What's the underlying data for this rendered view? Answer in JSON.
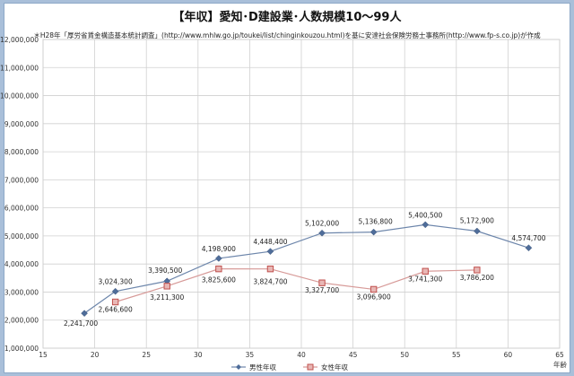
{
  "chart_data": {
    "type": "line",
    "title": "【年収】愛知･D建設業･人数規模10～99人",
    "subtitle": "＊H28年「厚労省賃金構造基本統計調査」(http://www.mhlw.go.jp/toukei/list/chinginkouzou.html)を基に安達社会保険労務士事務所(http://www.fp-s.co.jp)が作成",
    "xlabel": "年齢",
    "ylabel": "",
    "xlim": [
      15,
      65
    ],
    "ylim": [
      1000000,
      12000000
    ],
    "x_ticks": [
      15,
      20,
      25,
      30,
      35,
      40,
      45,
      50,
      55,
      60,
      65
    ],
    "y_ticks": [
      1000000,
      2000000,
      3000000,
      4000000,
      5000000,
      6000000,
      7000000,
      8000000,
      9000000,
      10000000,
      11000000,
      12000000
    ],
    "y_tick_labels": [
      "1,000,000",
      "2,000,000",
      "3,000,000",
      "4,000,000",
      "5,000,000",
      "6,000,000",
      "7,000,000",
      "8,000,000",
      "9,000,000",
      "10,000,000",
      "11,000,000",
      "12,000,000"
    ],
    "grid": true,
    "legend_position": "bottom",
    "series": [
      {
        "name": "男性年収",
        "color": "#4f6d9a",
        "marker": "diamond",
        "x": [
          19,
          22,
          27,
          32,
          37,
          42,
          47,
          52,
          57,
          62
        ],
        "values": [
          2241700,
          3024300,
          3390500,
          4198900,
          4448400,
          5102000,
          5136800,
          5400500,
          5172900,
          4574700
        ],
        "labels": [
          "2,241,700",
          "3,024,300",
          "3,390,500",
          "4,198,900",
          "4,448,400",
          "5,102,000",
          "5,136,800",
          "5,400,500",
          "5,172,900",
          "4,574,700"
        ]
      },
      {
        "name": "女性年収",
        "color": "#c0504d",
        "marker": "square",
        "x": [
          22,
          27,
          32,
          37,
          42,
          47,
          52,
          57
        ],
        "values": [
          2646600,
          3211300,
          3825600,
          3824700,
          3327700,
          3096900,
          3741300,
          3786200
        ],
        "labels": [
          "2,646,600",
          "3,211,300",
          "3,825,600",
          "3,824,700",
          "3,327,700",
          "3,096,900",
          "3,741,300",
          "3,786,200"
        ]
      }
    ]
  }
}
